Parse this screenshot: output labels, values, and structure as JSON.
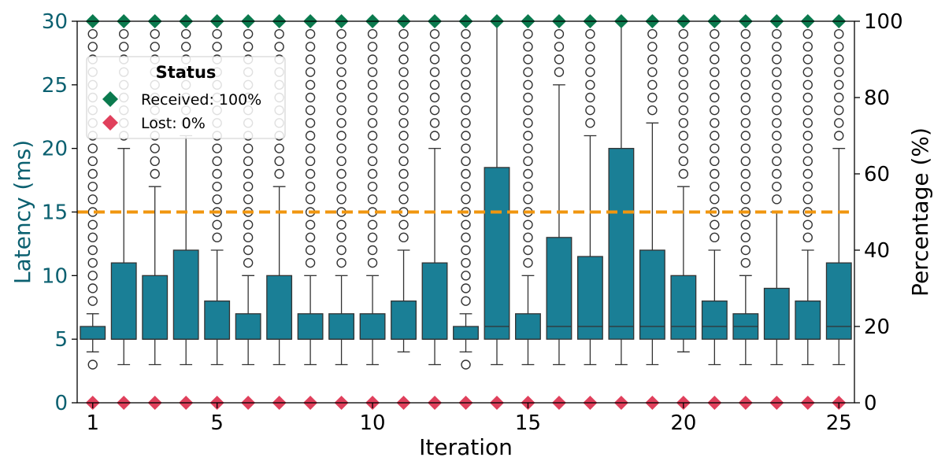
{
  "chart_data": {
    "type": "box",
    "title": "",
    "xlabel": "Iteration",
    "ylabel_left": "Latency (ms)",
    "ylabel_right": "Percentage (%)",
    "xlim": [
      0.5,
      25.5
    ],
    "ylim_left": [
      0,
      30
    ],
    "ylim_right": [
      0,
      100
    ],
    "x_ticks": [
      1,
      5,
      10,
      15,
      20,
      25
    ],
    "y_ticks_left": [
      0,
      5,
      10,
      15,
      20,
      25,
      30
    ],
    "y_ticks_right": [
      0,
      20,
      40,
      60,
      80,
      100
    ],
    "threshold_line": {
      "value": 15,
      "axis": "left",
      "style": "dashed",
      "color": "#f0960f"
    },
    "colors": {
      "box_fill": "#1a7f96",
      "box_edge": "#333333",
      "left_axis": "#0b6070",
      "received": "#0b7a4e",
      "lost": "#e0405c",
      "outlier": "#333333"
    },
    "legend": {
      "title": "Status",
      "placement": "upper-left",
      "entries": [
        {
          "label": "Received: 100%",
          "color": "#0b7a4e",
          "marker": "diamond"
        },
        {
          "label": "Lost: 0%",
          "color": "#e0405c",
          "marker": "diamond"
        }
      ]
    },
    "series": [
      {
        "name": "Received",
        "axis": "right",
        "marker": "diamond",
        "color": "#0b7a4e",
        "x": [
          1,
          2,
          3,
          4,
          5,
          6,
          7,
          8,
          9,
          10,
          11,
          12,
          13,
          14,
          15,
          16,
          17,
          18,
          19,
          20,
          21,
          22,
          23,
          24,
          25
        ],
        "values": [
          100,
          100,
          100,
          100,
          100,
          100,
          100,
          100,
          100,
          100,
          100,
          100,
          100,
          100,
          100,
          100,
          100,
          100,
          100,
          100,
          100,
          100,
          100,
          100,
          100
        ]
      },
      {
        "name": "Lost",
        "axis": "right",
        "marker": "diamond",
        "color": "#e0405c",
        "x": [
          1,
          2,
          3,
          4,
          5,
          6,
          7,
          8,
          9,
          10,
          11,
          12,
          13,
          14,
          15,
          16,
          17,
          18,
          19,
          20,
          21,
          22,
          23,
          24,
          25
        ],
        "values": [
          0,
          0,
          0,
          0,
          0,
          0,
          0,
          0,
          0,
          0,
          0,
          0,
          0,
          0,
          0,
          0,
          0,
          0,
          0,
          0,
          0,
          0,
          0,
          0,
          0
        ]
      }
    ],
    "boxes": [
      {
        "x": 1,
        "whislo": 4,
        "q1": 5,
        "med": 5,
        "q3": 6,
        "whishi": 7,
        "fliers_low": [
          3
        ],
        "flier_from": 8,
        "flier_to": 29
      },
      {
        "x": 2,
        "whislo": 3,
        "q1": 5,
        "med": 5,
        "q3": 11,
        "whishi": 20,
        "fliers_low": [],
        "flier_from": 21,
        "flier_to": 29
      },
      {
        "x": 3,
        "whislo": 3,
        "q1": 5,
        "med": 5,
        "q3": 10,
        "whishi": 17,
        "fliers_low": [],
        "flier_from": 18,
        "flier_to": 29
      },
      {
        "x": 4,
        "whislo": 3,
        "q1": 5,
        "med": 5,
        "q3": 12,
        "whishi": 21,
        "fliers_low": [],
        "flier_from": 22,
        "flier_to": 29
      },
      {
        "x": 5,
        "whislo": 3,
        "q1": 5,
        "med": 5,
        "q3": 8,
        "whishi": 12,
        "fliers_low": [],
        "flier_from": 13,
        "flier_to": 29
      },
      {
        "x": 6,
        "whislo": 3,
        "q1": 5,
        "med": 5,
        "q3": 7,
        "whishi": 10,
        "fliers_low": [],
        "flier_from": 11,
        "flier_to": 29
      },
      {
        "x": 7,
        "whislo": 3,
        "q1": 5,
        "med": 5,
        "q3": 10,
        "whishi": 17,
        "fliers_low": [],
        "flier_from": 18,
        "flier_to": 29
      },
      {
        "x": 8,
        "whislo": 3,
        "q1": 5,
        "med": 5,
        "q3": 7,
        "whishi": 10,
        "fliers_low": [],
        "flier_from": 11,
        "flier_to": 29
      },
      {
        "x": 9,
        "whislo": 3,
        "q1": 5,
        "med": 5,
        "q3": 7,
        "whishi": 10,
        "fliers_low": [],
        "flier_from": 11,
        "flier_to": 29
      },
      {
        "x": 10,
        "whislo": 3,
        "q1": 5,
        "med": 5,
        "q3": 7,
        "whishi": 10,
        "fliers_low": [],
        "flier_from": 11,
        "flier_to": 29
      },
      {
        "x": 11,
        "whislo": 4,
        "q1": 5,
        "med": 5,
        "q3": 8,
        "whishi": 12,
        "fliers_low": [],
        "flier_from": 13,
        "flier_to": 29
      },
      {
        "x": 12,
        "whislo": 3,
        "q1": 5,
        "med": 5,
        "q3": 11,
        "whishi": 20,
        "fliers_low": [],
        "flier_from": 21,
        "flier_to": 29
      },
      {
        "x": 13,
        "whislo": 4,
        "q1": 5,
        "med": 5,
        "q3": 6,
        "whishi": 7,
        "fliers_low": [
          3
        ],
        "flier_from": 8,
        "flier_to": 29
      },
      {
        "x": 14,
        "whislo": 3,
        "q1": 5,
        "med": 6,
        "q3": 18.5,
        "whishi": 30,
        "fliers_low": [],
        "flier_from": null,
        "flier_to": null
      },
      {
        "x": 15,
        "whislo": 3,
        "q1": 5,
        "med": 5,
        "q3": 7,
        "whishi": 10,
        "fliers_low": [],
        "flier_from": 11,
        "flier_to": 29
      },
      {
        "x": 16,
        "whislo": 3,
        "q1": 5,
        "med": 6,
        "q3": 13,
        "whishi": 25,
        "fliers_low": [],
        "flier_from": 26,
        "flier_to": 29
      },
      {
        "x": 17,
        "whislo": 3,
        "q1": 5,
        "med": 6,
        "q3": 11.5,
        "whishi": 21,
        "fliers_low": [],
        "flier_from": 22,
        "flier_to": 29
      },
      {
        "x": 18,
        "whislo": 3,
        "q1": 5,
        "med": 6,
        "q3": 20,
        "whishi": 30,
        "fliers_low": [],
        "flier_from": null,
        "flier_to": null
      },
      {
        "x": 19,
        "whislo": 3,
        "q1": 5,
        "med": 6,
        "q3": 12,
        "whishi": 22,
        "fliers_low": [],
        "flier_from": 23,
        "flier_to": 29
      },
      {
        "x": 20,
        "whislo": 4,
        "q1": 5,
        "med": 6,
        "q3": 10,
        "whishi": 17,
        "fliers_low": [],
        "flier_from": 18,
        "flier_to": 29
      },
      {
        "x": 21,
        "whislo": 3,
        "q1": 5,
        "med": 6,
        "q3": 8,
        "whishi": 12,
        "fliers_low": [],
        "flier_from": 13,
        "flier_to": 29
      },
      {
        "x": 22,
        "whislo": 3,
        "q1": 5,
        "med": 6,
        "q3": 7,
        "whishi": 10,
        "fliers_low": [],
        "flier_from": 11,
        "flier_to": 29
      },
      {
        "x": 23,
        "whislo": 3,
        "q1": 5,
        "med": 5,
        "q3": 9,
        "whishi": 15,
        "fliers_low": [],
        "flier_from": 16,
        "flier_to": 29
      },
      {
        "x": 24,
        "whislo": 3,
        "q1": 5,
        "med": 5,
        "q3": 8,
        "whishi": 12,
        "fliers_low": [],
        "flier_from": 13,
        "flier_to": 29
      },
      {
        "x": 25,
        "whislo": 3,
        "q1": 5,
        "med": 6,
        "q3": 11,
        "whishi": 20,
        "fliers_low": [],
        "flier_from": 21,
        "flier_to": 29
      }
    ]
  }
}
